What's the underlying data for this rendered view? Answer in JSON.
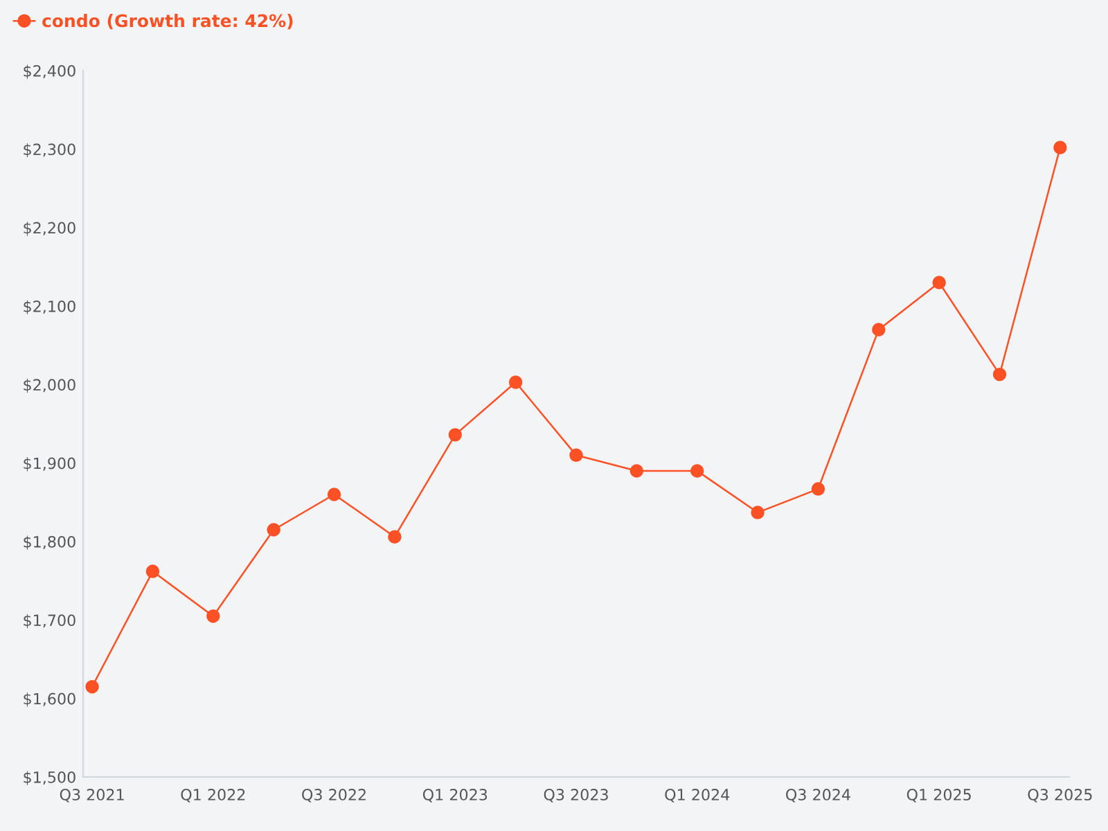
{
  "chart_data": {
    "type": "line",
    "categories": [
      "Q3 2021",
      null,
      "Q1 2022",
      null,
      "Q3 2022",
      null,
      "Q1 2023",
      null,
      "Q3 2023",
      null,
      "Q1 2024",
      null,
      "Q3 2024",
      null,
      "Q1 2025",
      null,
      "Q3 2025"
    ],
    "series": [
      {
        "name": "condo (Growth rate: 42%)",
        "color": "#fc5125",
        "values": [
          1615,
          1762,
          1705,
          1815,
          1860,
          1806,
          1936,
          2003,
          1910,
          1890,
          1890,
          1837,
          1867,
          2070,
          2130,
          2013,
          2302
        ]
      }
    ],
    "ylim": [
      1500,
      2400
    ],
    "yticks": [
      {
        "value": 1500,
        "label": "$1,500"
      },
      {
        "value": 1600,
        "label": "$1,600"
      },
      {
        "value": 1700,
        "label": "$1,700"
      },
      {
        "value": 1800,
        "label": "$1,800"
      },
      {
        "value": 1900,
        "label": "$1,900"
      },
      {
        "value": 2000,
        "label": "$2,000"
      },
      {
        "value": 2100,
        "label": "$2,100"
      },
      {
        "value": 2200,
        "label": "$2,200"
      },
      {
        "value": 2300,
        "label": "$2,300"
      },
      {
        "value": 2400,
        "label": "$2,400"
      }
    ],
    "grid": false,
    "legend": "top left",
    "marker": "circle",
    "line_style": "solid"
  }
}
